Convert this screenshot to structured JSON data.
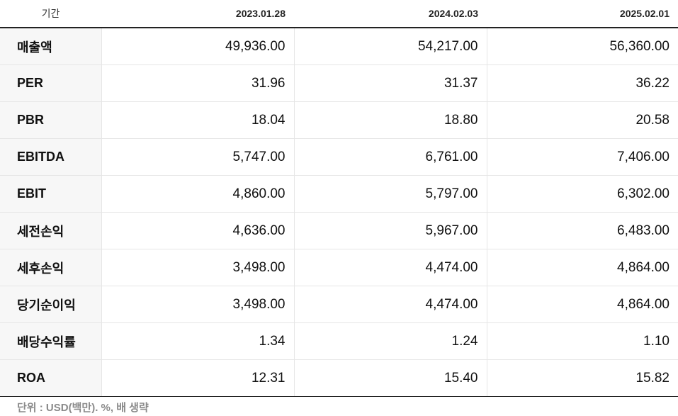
{
  "table": {
    "header": {
      "label": "기간",
      "dates": [
        "2023.01.28",
        "2024.02.03",
        "2025.02.01"
      ]
    },
    "rows": [
      {
        "label": "매출액",
        "values": [
          "49,936.00",
          "54,217.00",
          "56,360.00"
        ]
      },
      {
        "label": "PER",
        "values": [
          "31.96",
          "31.37",
          "36.22"
        ]
      },
      {
        "label": "PBR",
        "values": [
          "18.04",
          "18.80",
          "20.58"
        ]
      },
      {
        "label": "EBITDA",
        "values": [
          "5,747.00",
          "6,761.00",
          "7,406.00"
        ]
      },
      {
        "label": "EBIT",
        "values": [
          "4,860.00",
          "5,797.00",
          "6,302.00"
        ]
      },
      {
        "label": "세전손익",
        "values": [
          "4,636.00",
          "5,967.00",
          "6,483.00"
        ]
      },
      {
        "label": "세후손익",
        "values": [
          "3,498.00",
          "4,474.00",
          "4,864.00"
        ]
      },
      {
        "label": "당기순이익",
        "values": [
          "3,498.00",
          "4,474.00",
          "4,864.00"
        ]
      },
      {
        "label": "배당수익률",
        "values": [
          "1.34",
          "1.24",
          "1.10"
        ]
      },
      {
        "label": "ROA",
        "values": [
          "12.31",
          "15.40",
          "15.82"
        ]
      }
    ]
  },
  "footnote": "단위 : USD(백만). %, 배 생략"
}
